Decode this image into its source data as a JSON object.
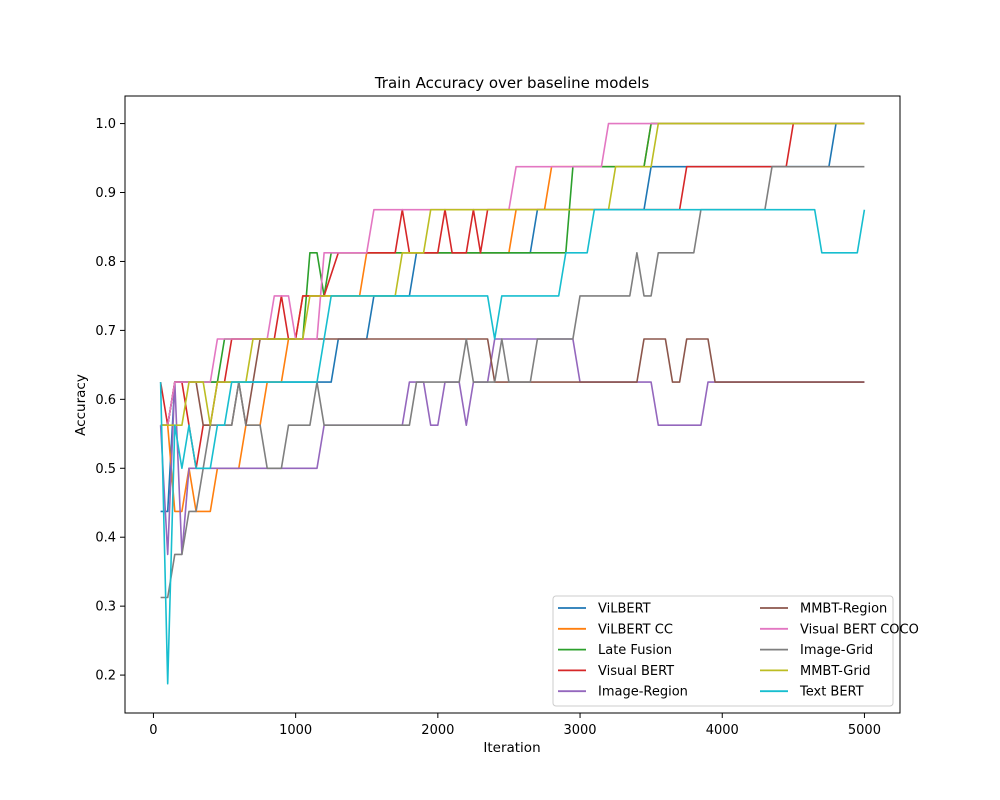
{
  "chart_data": {
    "type": "line",
    "title": "Train Accuracy over baseline models",
    "xlabel": "Iteration",
    "ylabel": "Accuracy",
    "xlim": [
      -200,
      5250
    ],
    "ylim": [
      0.145,
      1.04
    ],
    "xticks": [
      0,
      1000,
      2000,
      3000,
      4000,
      5000
    ],
    "yticks": [
      0.2,
      0.3,
      0.4,
      0.5,
      0.6,
      0.7,
      0.8,
      0.9,
      1.0
    ],
    "xtick_labels": [
      "0",
      "1000",
      "2000",
      "3000",
      "4000",
      "5000"
    ],
    "ytick_labels": [
      "0.2",
      "0.3",
      "0.4",
      "0.5",
      "0.6",
      "0.7",
      "0.8",
      "0.9",
      "1.0"
    ],
    "grid": false,
    "legend": {
      "position": "lower-right",
      "columns": 2
    },
    "series": [
      {
        "name": "ViLBERT",
        "color": "#1f77b4",
        "points": [
          [
            50,
            0.4375
          ],
          [
            100,
            0.4375
          ],
          [
            150,
            0.625
          ],
          [
            600,
            0.625
          ],
          [
            1250,
            0.625
          ],
          [
            1300,
            0.6875
          ],
          [
            1500,
            0.6875
          ],
          [
            1550,
            0.75
          ],
          [
            1800,
            0.75
          ],
          [
            1850,
            0.8125
          ],
          [
            2650,
            0.8125
          ],
          [
            2700,
            0.875
          ],
          [
            3450,
            0.875
          ],
          [
            3500,
            0.9375
          ],
          [
            4750,
            0.9375
          ],
          [
            4800,
            1.0
          ],
          [
            5000,
            1.0
          ]
        ]
      },
      {
        "name": "ViLBERT CC",
        "color": "#ff7f0e",
        "points": [
          [
            50,
            0.5625
          ],
          [
            100,
            0.5625
          ],
          [
            150,
            0.4375
          ],
          [
            200,
            0.4375
          ],
          [
            250,
            0.5
          ],
          [
            300,
            0.4375
          ],
          [
            400,
            0.4375
          ],
          [
            450,
            0.5
          ],
          [
            600,
            0.5
          ],
          [
            650,
            0.5625
          ],
          [
            750,
            0.5625
          ],
          [
            800,
            0.625
          ],
          [
            900,
            0.625
          ],
          [
            950,
            0.6875
          ],
          [
            1000,
            0.6875
          ],
          [
            1050,
            0.75
          ],
          [
            1450,
            0.75
          ],
          [
            1500,
            0.8125
          ],
          [
            2500,
            0.8125
          ],
          [
            2550,
            0.875
          ],
          [
            2750,
            0.875
          ],
          [
            2800,
            0.9375
          ],
          [
            3450,
            0.9375
          ],
          [
            3500,
            1.0
          ],
          [
            5000,
            1.0
          ]
        ]
      },
      {
        "name": "Late Fusion",
        "color": "#2ca02c",
        "points": [
          [
            50,
            0.5625
          ],
          [
            100,
            0.5625
          ],
          [
            150,
            0.625
          ],
          [
            450,
            0.625
          ],
          [
            500,
            0.6875
          ],
          [
            1050,
            0.6875
          ],
          [
            1100,
            0.8125
          ],
          [
            1150,
            0.8125
          ],
          [
            1200,
            0.75
          ],
          [
            1250,
            0.8125
          ],
          [
            2900,
            0.8125
          ],
          [
            2950,
            0.9375
          ],
          [
            3450,
            0.9375
          ],
          [
            3500,
            1.0
          ],
          [
            5000,
            1.0
          ]
        ]
      },
      {
        "name": "Visual BERT",
        "color": "#d62728",
        "points": [
          [
            50,
            0.625
          ],
          [
            100,
            0.5625
          ],
          [
            150,
            0.625
          ],
          [
            200,
            0.625
          ],
          [
            250,
            0.5625
          ],
          [
            300,
            0.5
          ],
          [
            350,
            0.5625
          ],
          [
            400,
            0.5625
          ],
          [
            450,
            0.625
          ],
          [
            500,
            0.625
          ],
          [
            550,
            0.6875
          ],
          [
            850,
            0.6875
          ],
          [
            900,
            0.75
          ],
          [
            950,
            0.6875
          ],
          [
            1000,
            0.6875
          ],
          [
            1050,
            0.75
          ],
          [
            1200,
            0.75
          ],
          [
            1300,
            0.8125
          ],
          [
            1700,
            0.8125
          ],
          [
            1750,
            0.875
          ],
          [
            1800,
            0.8125
          ],
          [
            2000,
            0.8125
          ],
          [
            2050,
            0.875
          ],
          [
            2100,
            0.8125
          ],
          [
            2200,
            0.8125
          ],
          [
            2250,
            0.875
          ],
          [
            2300,
            0.8125
          ],
          [
            2350,
            0.875
          ],
          [
            3700,
            0.875
          ],
          [
            3750,
            0.9375
          ],
          [
            4450,
            0.9375
          ],
          [
            4500,
            1.0
          ],
          [
            5000,
            1.0
          ]
        ]
      },
      {
        "name": "Image-Region",
        "color": "#9467bd",
        "points": [
          [
            50,
            0.5625
          ],
          [
            100,
            0.375
          ],
          [
            150,
            0.625
          ],
          [
            200,
            0.375
          ],
          [
            250,
            0.5
          ],
          [
            1150,
            0.5
          ],
          [
            1200,
            0.5625
          ],
          [
            1750,
            0.5625
          ],
          [
            1800,
            0.625
          ],
          [
            1900,
            0.625
          ],
          [
            1950,
            0.5625
          ],
          [
            2000,
            0.5625
          ],
          [
            2050,
            0.625
          ],
          [
            2150,
            0.625
          ],
          [
            2200,
            0.5625
          ],
          [
            2250,
            0.625
          ],
          [
            2350,
            0.625
          ],
          [
            2400,
            0.6875
          ],
          [
            2950,
            0.6875
          ],
          [
            3000,
            0.625
          ],
          [
            3500,
            0.625
          ],
          [
            3550,
            0.5625
          ],
          [
            3850,
            0.5625
          ],
          [
            3900,
            0.625
          ],
          [
            5000,
            0.625
          ]
        ]
      },
      {
        "name": "MMBT-Region",
        "color": "#8c564b",
        "points": [
          [
            50,
            0.5625
          ],
          [
            100,
            0.5625
          ],
          [
            150,
            0.625
          ],
          [
            300,
            0.625
          ],
          [
            350,
            0.5625
          ],
          [
            550,
            0.5625
          ],
          [
            600,
            0.625
          ],
          [
            650,
            0.5625
          ],
          [
            700,
            0.625
          ],
          [
            750,
            0.6875
          ],
          [
            2350,
            0.6875
          ],
          [
            2400,
            0.625
          ],
          [
            3400,
            0.625
          ],
          [
            3450,
            0.6875
          ],
          [
            3600,
            0.6875
          ],
          [
            3650,
            0.625
          ],
          [
            3700,
            0.625
          ],
          [
            3750,
            0.6875
          ],
          [
            3900,
            0.6875
          ],
          [
            3950,
            0.625
          ],
          [
            5000,
            0.625
          ]
        ]
      },
      {
        "name": "Visual BERT COCO",
        "color": "#e377c2",
        "points": [
          [
            50,
            0.5625
          ],
          [
            100,
            0.5625
          ],
          [
            150,
            0.625
          ],
          [
            400,
            0.625
          ],
          [
            450,
            0.6875
          ],
          [
            800,
            0.6875
          ],
          [
            850,
            0.75
          ],
          [
            950,
            0.75
          ],
          [
            1000,
            0.6875
          ],
          [
            1150,
            0.6875
          ],
          [
            1200,
            0.8125
          ],
          [
            1500,
            0.8125
          ],
          [
            1550,
            0.875
          ],
          [
            2500,
            0.875
          ],
          [
            2550,
            0.9375
          ],
          [
            3150,
            0.9375
          ],
          [
            3200,
            1.0
          ],
          [
            5000,
            1.0
          ]
        ]
      },
      {
        "name": "Image-Grid",
        "color": "#7f7f7f",
        "points": [
          [
            50,
            0.3125
          ],
          [
            100,
            0.3125
          ],
          [
            150,
            0.375
          ],
          [
            200,
            0.375
          ],
          [
            250,
            0.4375
          ],
          [
            300,
            0.4375
          ],
          [
            350,
            0.5
          ],
          [
            400,
            0.5625
          ],
          [
            550,
            0.5625
          ],
          [
            600,
            0.625
          ],
          [
            650,
            0.5625
          ],
          [
            750,
            0.5625
          ],
          [
            800,
            0.5
          ],
          [
            900,
            0.5
          ],
          [
            950,
            0.5625
          ],
          [
            1100,
            0.5625
          ],
          [
            1150,
            0.625
          ],
          [
            1200,
            0.5625
          ],
          [
            1800,
            0.5625
          ],
          [
            1850,
            0.625
          ],
          [
            2150,
            0.625
          ],
          [
            2200,
            0.6875
          ],
          [
            2250,
            0.625
          ],
          [
            2400,
            0.625
          ],
          [
            2450,
            0.6875
          ],
          [
            2500,
            0.625
          ],
          [
            2650,
            0.625
          ],
          [
            2700,
            0.6875
          ],
          [
            2950,
            0.6875
          ],
          [
            3000,
            0.75
          ],
          [
            3350,
            0.75
          ],
          [
            3400,
            0.8125
          ],
          [
            3450,
            0.75
          ],
          [
            3500,
            0.75
          ],
          [
            3550,
            0.8125
          ],
          [
            3800,
            0.8125
          ],
          [
            3850,
            0.875
          ],
          [
            4300,
            0.875
          ],
          [
            4350,
            0.9375
          ],
          [
            5000,
            0.9375
          ]
        ]
      },
      {
        "name": "MMBT-Grid",
        "color": "#bcbd22",
        "points": [
          [
            50,
            0.5625
          ],
          [
            100,
            0.5625
          ],
          [
            150,
            0.5625
          ],
          [
            200,
            0.5625
          ],
          [
            250,
            0.625
          ],
          [
            350,
            0.625
          ],
          [
            400,
            0.5625
          ],
          [
            450,
            0.625
          ],
          [
            650,
            0.625
          ],
          [
            700,
            0.6875
          ],
          [
            1050,
            0.6875
          ],
          [
            1100,
            0.75
          ],
          [
            1700,
            0.75
          ],
          [
            1750,
            0.8125
          ],
          [
            1900,
            0.8125
          ],
          [
            1950,
            0.875
          ],
          [
            3200,
            0.875
          ],
          [
            3250,
            0.9375
          ],
          [
            3500,
            0.9375
          ],
          [
            3550,
            1.0
          ],
          [
            5000,
            1.0
          ]
        ]
      },
      {
        "name": "Text BERT",
        "color": "#17becf",
        "points": [
          [
            50,
            0.625
          ],
          [
            100,
            0.1875
          ],
          [
            150,
            0.5625
          ],
          [
            200,
            0.5
          ],
          [
            250,
            0.5625
          ],
          [
            300,
            0.5
          ],
          [
            400,
            0.5
          ],
          [
            450,
            0.5625
          ],
          [
            500,
            0.5625
          ],
          [
            550,
            0.625
          ],
          [
            1150,
            0.625
          ],
          [
            1200,
            0.6875
          ],
          [
            1250,
            0.75
          ],
          [
            2350,
            0.75
          ],
          [
            2400,
            0.6875
          ],
          [
            2450,
            0.75
          ],
          [
            2850,
            0.75
          ],
          [
            2900,
            0.8125
          ],
          [
            3050,
            0.8125
          ],
          [
            3100,
            0.875
          ],
          [
            4650,
            0.875
          ],
          [
            4700,
            0.8125
          ],
          [
            4950,
            0.8125
          ],
          [
            5000,
            0.875
          ]
        ]
      }
    ]
  }
}
